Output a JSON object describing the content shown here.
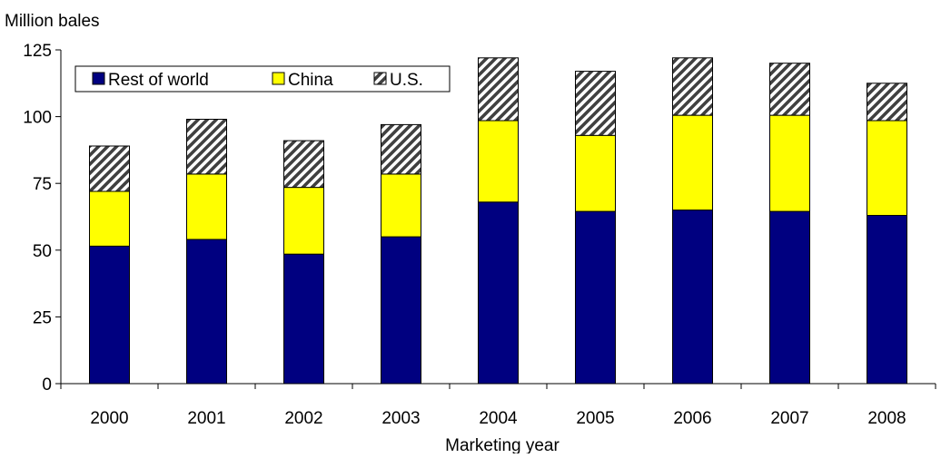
{
  "chart_data": {
    "type": "bar",
    "stacked": true,
    "title": "",
    "xlabel": "Marketing year",
    "ylabel": "Million bales",
    "ylim": [
      0,
      125
    ],
    "yticks": [
      0,
      25,
      50,
      75,
      100,
      125
    ],
    "grid": false,
    "legend_position": "top-left",
    "categories": [
      "2000",
      "2001",
      "2002",
      "2003",
      "2004",
      "2005",
      "2006",
      "2007",
      "2008"
    ],
    "series": [
      {
        "name": "Rest of world",
        "color": "#000080",
        "pattern": "solid",
        "values": [
          51.5,
          54.0,
          48.5,
          55.0,
          68.0,
          64.5,
          65.0,
          64.5,
          63.0
        ]
      },
      {
        "name": "China",
        "color": "#ffff00",
        "pattern": "solid",
        "values": [
          20.5,
          24.5,
          25.0,
          23.5,
          30.5,
          28.5,
          35.5,
          36.0,
          35.5
        ]
      },
      {
        "name": "U.S.",
        "color": "#808080",
        "pattern": "diagonal-stripes",
        "values": [
          17.0,
          20.5,
          17.5,
          18.5,
          23.5,
          24.0,
          21.5,
          19.5,
          14.0
        ]
      }
    ]
  }
}
